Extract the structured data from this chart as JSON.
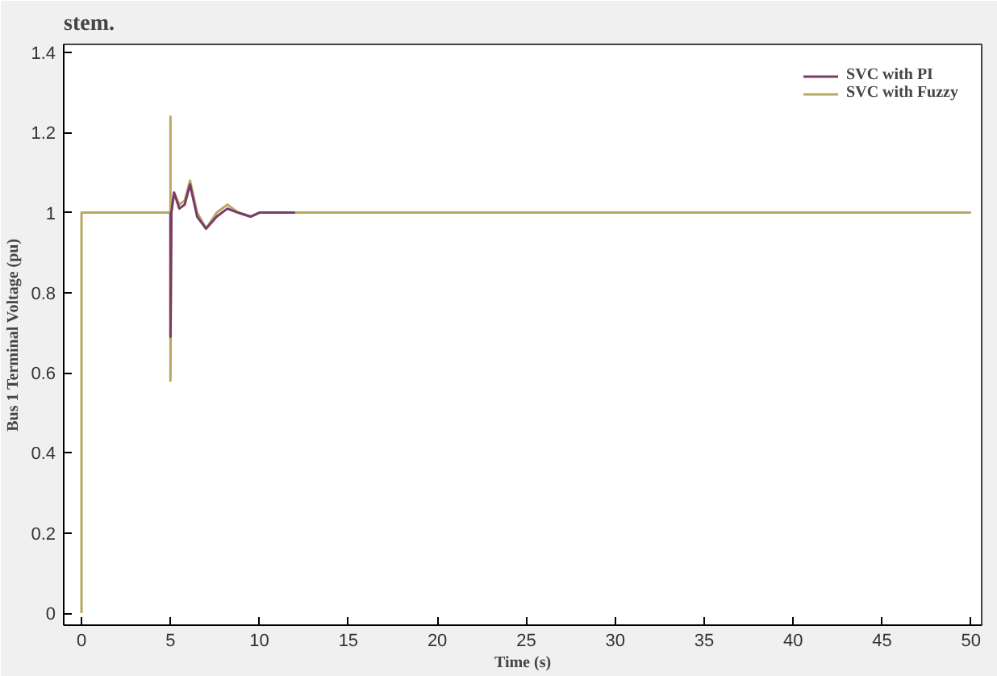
{
  "chart_data": {
    "type": "line",
    "xlabel": "Time (s)",
    "ylabel": "Bus 1 Terminal Voltage (pu)",
    "annotations": [
      "stem."
    ],
    "xlim": [
      -1,
      50.6
    ],
    "ylim": [
      -0.03,
      1.42
    ],
    "xticks": [
      0,
      5,
      10,
      15,
      20,
      25,
      30,
      35,
      40,
      45,
      50
    ],
    "yticks": [
      0,
      0.2,
      0.4,
      0.6,
      0.8,
      1,
      1.2,
      1.4
    ],
    "grid": false,
    "legend": "top right",
    "marker": "none",
    "line_style": "solid",
    "series": [
      {
        "name": "SVC with Fuzzy",
        "color": "#b8a860",
        "x": [
          0,
          0,
          5,
          5,
          5,
          5.05,
          5.2,
          5.5,
          5.8,
          6.1,
          6.5,
          7,
          7.6,
          8.2,
          8.8,
          9.5,
          10,
          50
        ],
        "values": [
          0,
          1,
          1,
          1.24,
          0.58,
          1.0,
          1.05,
          1.02,
          1.03,
          1.08,
          1.0,
          0.96,
          1.0,
          1.02,
          1.0,
          0.99,
          1.0,
          1.0
        ]
      },
      {
        "name": "SVC with PI",
        "color": "#7a3a6a",
        "x": [
          5,
          5,
          5,
          5.05,
          5.2,
          5.5,
          5.8,
          6.1,
          6.5,
          7,
          7.6,
          8.2,
          8.8,
          9.5,
          10,
          12
        ],
        "values": [
          1,
          0.84,
          0.69,
          1.0,
          1.05,
          1.01,
          1.02,
          1.07,
          0.99,
          0.96,
          0.99,
          1.01,
          1.0,
          0.99,
          1.0,
          1.0
        ]
      }
    ]
  }
}
